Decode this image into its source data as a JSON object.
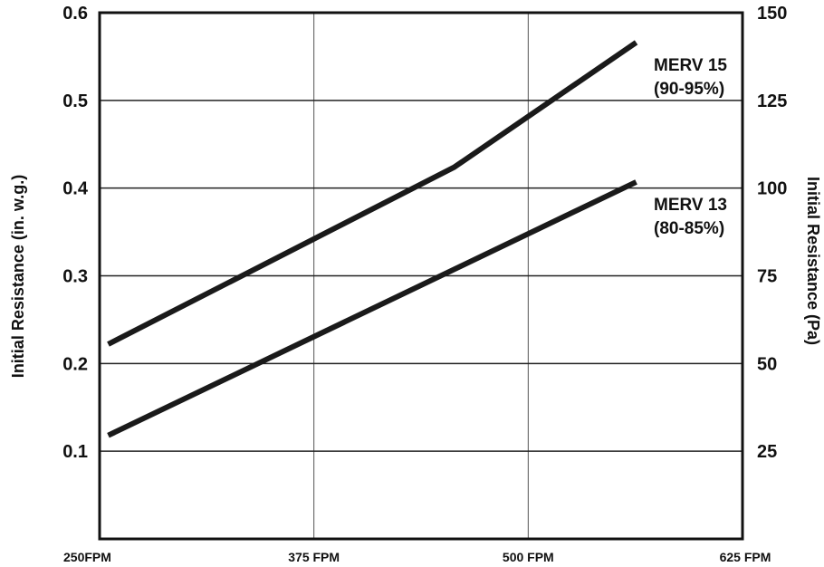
{
  "chart_data": {
    "type": "line",
    "title": "",
    "xlabel": "",
    "ylabel": "Initial Resistance (in. w.g.)",
    "y2label": "Initial Resistance (Pa)",
    "x_ticks": [
      {
        "value": 250,
        "label": "250FPM"
      },
      {
        "value": 375,
        "label": "375 FPM"
      },
      {
        "value": 500,
        "label": "500 FPM"
      },
      {
        "value": 625,
        "label": "625 FPM"
      }
    ],
    "y_ticks": [
      {
        "value": 0.1,
        "label": "0.1"
      },
      {
        "value": 0.2,
        "label": "0.2"
      },
      {
        "value": 0.3,
        "label": "0.3"
      },
      {
        "value": 0.4,
        "label": "0.4"
      },
      {
        "value": 0.5,
        "label": "0.5"
      },
      {
        "value": 0.6,
        "label": "0.6"
      }
    ],
    "y2_ticks": [
      {
        "value": 25,
        "label": "25"
      },
      {
        "value": 50,
        "label": "50"
      },
      {
        "value": 75,
        "label": "75"
      },
      {
        "value": 100,
        "label": "100"
      },
      {
        "value": 125,
        "label": "125"
      },
      {
        "value": 150,
        "label": "150"
      }
    ],
    "xlim": [
      250,
      625
    ],
    "ylim": [
      0,
      0.6
    ],
    "y2lim": [
      0,
      150
    ],
    "grid": true,
    "series": [
      {
        "name": "MERV 15",
        "name_line2": "(90-95%)",
        "x": [
          255,
          457,
          563
        ],
        "y": [
          0.222,
          0.424,
          0.566
        ]
      },
      {
        "name": "MERV 13",
        "name_line2": "(80-85%)",
        "x": [
          255,
          563
        ],
        "y": [
          0.118,
          0.407
        ]
      }
    ]
  }
}
